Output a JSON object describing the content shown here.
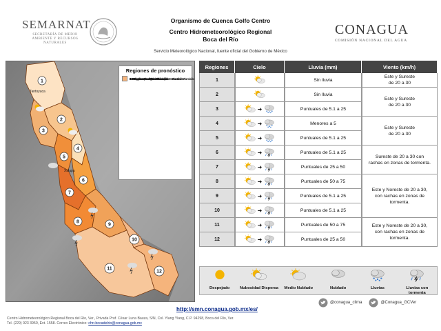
{
  "header": {
    "semarnat": "SEMARNAT",
    "semarnat_sub": "SECRETARÍA DE MEDIO AMBIENTE Y RECURSOS NATURALES",
    "title1": "Organismo de Cuenca Golfo Centro",
    "title2": "Centro Hidrometeorológico Regional",
    "title3": "Boca del Río",
    "service": "Servicio Meteorológico Nacional, fuente oficial del Gobierno de México",
    "conagua": "CONAGUA",
    "conagua_sub": "COMISIÓN NACIONAL DEL AGUA"
  },
  "legend": {
    "title": "Regiones de pronóstico",
    "items": [
      {
        "label": "1.Pánuco",
        "color": "#fde3c4"
      },
      {
        "label": "2.Tuxpan-Cazones-Tecolutla: Planicie",
        "color": "#f7c58e"
      },
      {
        "label": "3.Tuxpan-Cazones-Tecolutla: Montaña",
        "color": "#f1b173"
      },
      {
        "label": "4.Nautla-Misantla: Planicie",
        "color": "#fbe0b8"
      },
      {
        "label": "5.Nautla-Misantla: Montaña",
        "color": "#f08f3a"
      },
      {
        "label": "6.Actopan-Antigua-Jamapa-Cotaxtla: Planicie",
        "color": "#f5a040"
      },
      {
        "label": "7.Actopan-Antigua-Jamapa-Cotaxtla: Montaña",
        "color": "#e5702b"
      },
      {
        "label": "8.Papaloapan: Montaña",
        "color": "#f28a34"
      },
      {
        "label": "9.Papaloapan: Planicie",
        "color": "#f0a259"
      },
      {
        "label": "10.Sierra Los Tuxtlas",
        "color": "#f3b98a"
      },
      {
        "label": "11.Coatzacoalcos: Montaña",
        "color": "#f7c79b"
      },
      {
        "label": "12.Coatzacoalcos: Planicie",
        "color": "#f5b47c"
      }
    ]
  },
  "map_labels": {
    "r1": "1",
    "r2": "2",
    "r3": "3",
    "r4": "4",
    "r5": "5",
    "r6": "6",
    "r7": "7",
    "r8": "8",
    "r9": "9",
    "r10": "10",
    "r11": "11",
    "r12": "12",
    "tantoyuca": "Tantoyuca",
    "xalapa": "Xalapa"
  },
  "table": {
    "headers": {
      "regiones": "Regiones",
      "cielo": "Cielo",
      "lluvia": "Lluvia (mm)",
      "viento": "Viento (km/h)"
    },
    "rows": [
      {
        "region": "1",
        "lluvia": "Sin lluvia",
        "sky": [
          "partly"
        ]
      },
      {
        "region": "2",
        "lluvia": "Sin lluvia",
        "sky": [
          "partly"
        ]
      },
      {
        "region": "3",
        "lluvia": "Puntuales de 5.1 a 25",
        "sky": [
          "partly",
          "rain"
        ]
      },
      {
        "region": "4",
        "lluvia": "Menores a 5",
        "sky": [
          "partly",
          "rain"
        ]
      },
      {
        "region": "5",
        "lluvia": "Puntuales de 5.1 a 25",
        "sky": [
          "partly",
          "rain"
        ]
      },
      {
        "region": "6",
        "lluvia": "Puntuales de 5.1 a 25",
        "sky": [
          "partly",
          "storm"
        ]
      },
      {
        "region": "7",
        "lluvia": "Puntuales de 25 a 50",
        "sky": [
          "partly",
          "storm"
        ]
      },
      {
        "region": "8",
        "lluvia": "Puntuales de 50 a 75",
        "sky": [
          "partly",
          "storm"
        ]
      },
      {
        "region": "9",
        "lluvia": "Puntuales de 5.1 a 25",
        "sky": [
          "partly",
          "storm"
        ]
      },
      {
        "region": "10",
        "lluvia": "Puntuales de 5.1 a 25",
        "sky": [
          "partly",
          "storm"
        ]
      },
      {
        "region": "11",
        "lluvia": "Puntuales de 50 a 75",
        "sky": [
          "partly",
          "storm"
        ]
      },
      {
        "region": "12",
        "lluvia": "Puntuales de 25 a 50",
        "sky": [
          "partly",
          "storm"
        ]
      }
    ],
    "winds": [
      {
        "l1": "Este y Sureste",
        "l2": "de 20 a 30",
        "l3": ""
      },
      {
        "l1": "Este y Sureste",
        "l2": "de 20 a 30",
        "l3": ""
      },
      {
        "l1": "Este y Sureste",
        "l2": "de 20 a 30",
        "l3": ""
      },
      {
        "l1": "Sureste de 20 a 30 con",
        "l2": "rachas en zonas de tormenta.",
        "l3": ""
      },
      {
        "l1": "Este y Noreste de 20 a 30,",
        "l2": "con rachas en zonas de",
        "l3": "tormenta."
      },
      {
        "l1": "Este y Noreste de 20 a 30,",
        "l2": "con rachas en zonas de",
        "l3": "tormenta."
      }
    ]
  },
  "icon_legend": [
    {
      "label": "Despejado",
      "icon": "sun-icon"
    },
    {
      "label": "Nubosidad Dispersa",
      "icon": "sun-cloud-icon"
    },
    {
      "label": "Medio Nublado",
      "icon": "half-cloud-icon"
    },
    {
      "label": "Nublado",
      "icon": "cloud-icon"
    },
    {
      "label": "Lluvias",
      "icon": "rain-icon"
    },
    {
      "label": "Lluvias con tormenta",
      "icon": "storm-icon"
    }
  ],
  "footer": {
    "url": "http://smn.conagua.gob.mx/es/",
    "twitter1": "@conagua_clima",
    "twitter2": "@Conagua_GCVer",
    "line1": "Centro Hidrometeorológico Regional Boca del Río, Ver., Privada Prof. César Luna Bauza, S/N, Col. Ylang Ylang, C.P. 94298, Boca del Río, Ver.",
    "line2": "Tel. (229) 923 3950, Ext. 1558. Correo Electrónico: ",
    "email": "chrr.bocadelrio@conagua.gob.mx"
  }
}
